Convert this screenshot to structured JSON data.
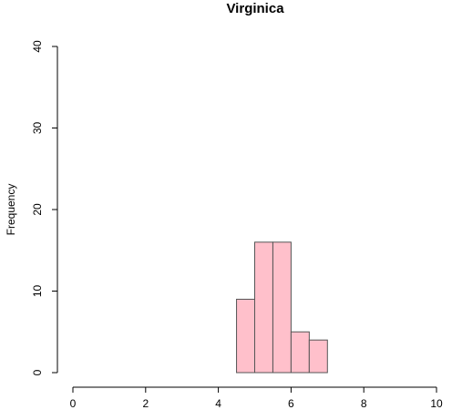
{
  "chart_data": {
    "type": "bar",
    "subtype": "histogram",
    "title": "Virginica",
    "xlabel": "",
    "ylabel": "Frequency",
    "xlim": [
      0,
      10
    ],
    "ylim": [
      0,
      40
    ],
    "x_ticks": [
      0,
      2,
      4,
      6,
      8,
      10
    ],
    "y_ticks": [
      0,
      10,
      20,
      30,
      40
    ],
    "bins": [
      {
        "start": 4.5,
        "end": 5.0,
        "count": 9
      },
      {
        "start": 5.0,
        "end": 5.5,
        "count": 16
      },
      {
        "start": 5.5,
        "end": 6.0,
        "count": 16
      },
      {
        "start": 6.0,
        "end": 6.5,
        "count": 5
      },
      {
        "start": 6.5,
        "end": 7.0,
        "count": 4
      }
    ],
    "bar_fill": "#ffc0cb",
    "bar_stroke": "#555555",
    "grid": false,
    "legend": "none"
  }
}
